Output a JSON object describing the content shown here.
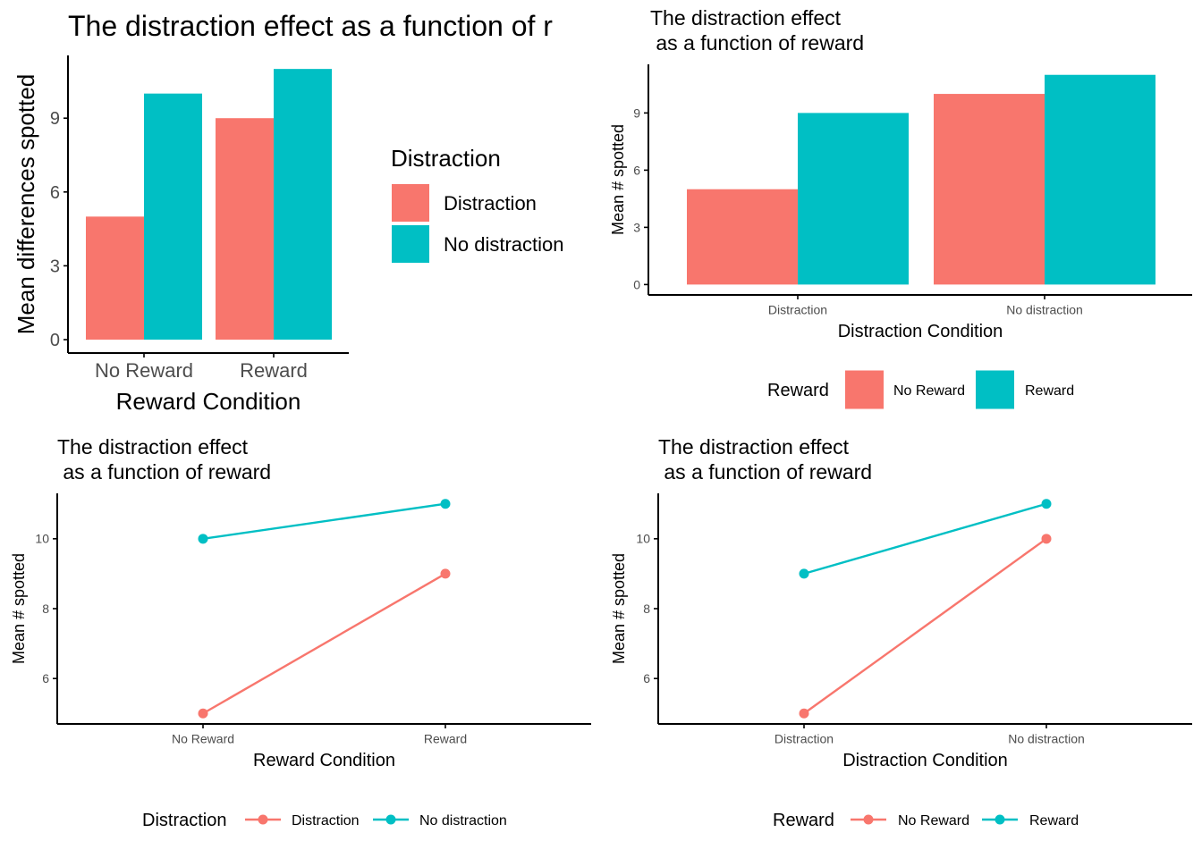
{
  "colors": {
    "red": "#F8766D",
    "teal": "#00BFC4",
    "axis": "#000000",
    "tick_text": "#4D4D4D"
  },
  "chart_data": [
    {
      "id": "p1",
      "type": "bar",
      "title": "The distraction effect as a function of r",
      "xlabel": "Reward Condition",
      "ylabel": "Mean differences spotted",
      "categories": [
        "No Reward",
        "Reward"
      ],
      "series": [
        {
          "name": "Distraction",
          "values": [
            5,
            9
          ]
        },
        {
          "name": "No distraction",
          "values": [
            10,
            11
          ]
        }
      ],
      "yticks": [
        0,
        3,
        6,
        9
      ],
      "ylim": [
        0,
        11.55
      ],
      "legend": {
        "title": "Distraction",
        "position": "right"
      }
    },
    {
      "id": "p2",
      "type": "bar",
      "title": "The distraction effect\n as a function of reward",
      "xlabel": "Distraction Condition",
      "ylabel": "Mean # spotted",
      "categories": [
        "Distraction",
        "No distraction"
      ],
      "series": [
        {
          "name": "No Reward",
          "values": [
            5,
            10
          ]
        },
        {
          "name": "Reward",
          "values": [
            9,
            11
          ]
        }
      ],
      "yticks": [
        0,
        3,
        6,
        9
      ],
      "ylim": [
        0,
        11.55
      ],
      "legend": {
        "title": "Reward",
        "position": "bottom"
      }
    },
    {
      "id": "p3",
      "type": "line",
      "title": "The distraction effect\n as a function of reward",
      "xlabel": "Reward Condition",
      "ylabel": "Mean # spotted",
      "categories": [
        "No Reward",
        "Reward"
      ],
      "series": [
        {
          "name": "Distraction",
          "values": [
            5,
            9
          ]
        },
        {
          "name": "No distraction",
          "values": [
            10,
            11
          ]
        }
      ],
      "yticks": [
        6,
        8,
        10
      ],
      "ylim": [
        4.7,
        11.3
      ],
      "legend": {
        "title": "Distraction",
        "position": "bottom"
      }
    },
    {
      "id": "p4",
      "type": "line",
      "title": "The distraction effect\n as a function of reward",
      "xlabel": "Distraction Condition",
      "ylabel": "Mean # spotted",
      "categories": [
        "Distraction",
        "No distraction"
      ],
      "series": [
        {
          "name": "No Reward",
          "values": [
            5,
            10
          ]
        },
        {
          "name": "Reward",
          "values": [
            9,
            11
          ]
        }
      ],
      "yticks": [
        6,
        8,
        10
      ],
      "ylim": [
        4.7,
        11.3
      ],
      "legend": {
        "title": "Reward",
        "position": "bottom"
      }
    }
  ]
}
